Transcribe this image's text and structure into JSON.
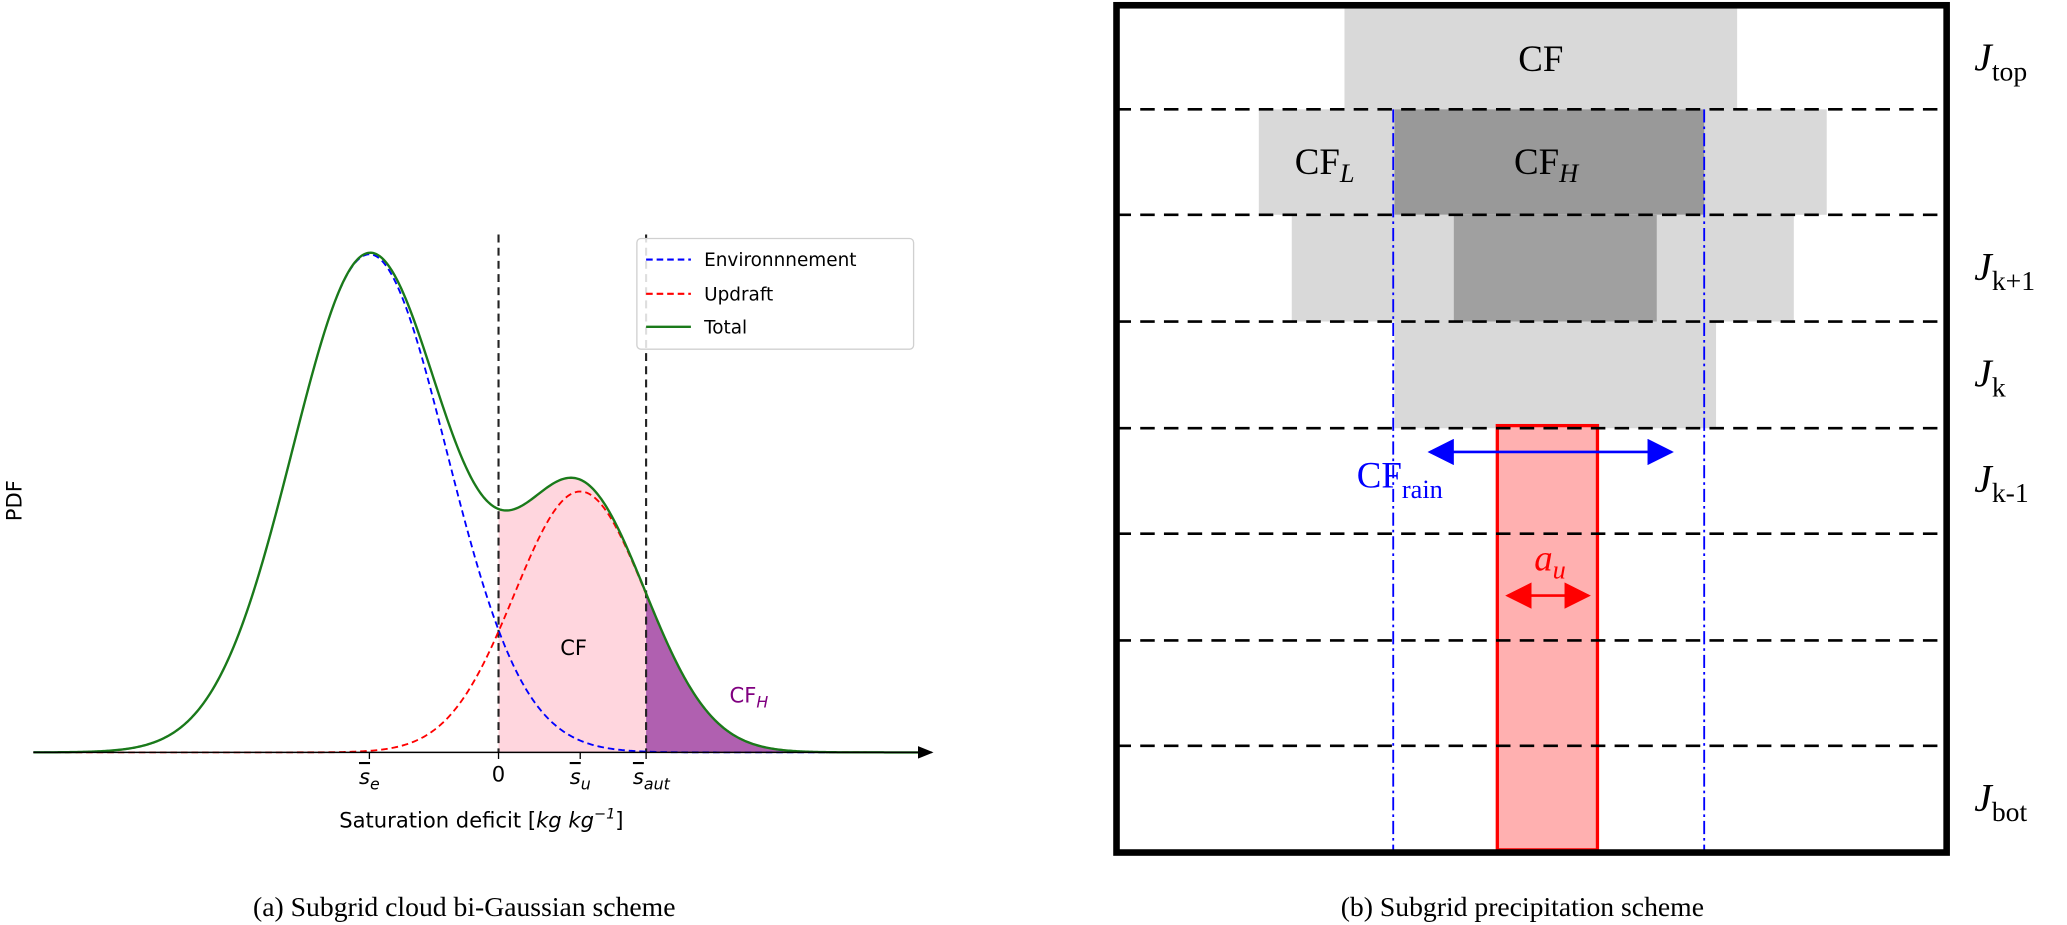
{
  "panel_a": {
    "caption": "(a) Subgrid cloud bi-Gaussian scheme",
    "ylabel": "PDF",
    "xlabel": "Saturation deficit [",
    "xlabel_unit": "kg kg",
    "xlabel_exp": "−1",
    "xlabel_close": "]",
    "ticks": [
      {
        "base": "s",
        "sub": "e"
      },
      {
        "base": "0",
        "sub": ""
      },
      {
        "base": "s",
        "sub": "u"
      },
      {
        "base": "s",
        "sub": "aut"
      }
    ],
    "region_labels": {
      "cf": "CF",
      "cfh_base": "CF",
      "cfh_sub": "H"
    },
    "legend": [
      {
        "label": "Environnnement",
        "color": "#0000ff",
        "style": "dashed"
      },
      {
        "label": "Updraft",
        "color": "#ff0000",
        "style": "dashed"
      },
      {
        "label": "Total",
        "color": "#008000",
        "style": "solid"
      }
    ],
    "colors": {
      "cf_fill": "#ffd6de",
      "cfh_fill": "#b060b0",
      "threshold": "#222222"
    }
  },
  "panel_b": {
    "caption": "(b) Subgrid precipitation scheme",
    "cloud_labels": {
      "cf": "CF",
      "cfl_base": "CF",
      "cfl_sub": "L",
      "cfh_base": "CF",
      "cfh_sub": "H"
    },
    "cf_rain": {
      "base": "CF",
      "sub": "rain"
    },
    "a_u": {
      "base": "a",
      "sub": "u"
    },
    "levels": [
      {
        "base": "J",
        "sub": "top"
      },
      {
        "base": "J",
        "sub": "k+1"
      },
      {
        "base": "J",
        "sub": "k"
      },
      {
        "base": "J",
        "sub": "k-1"
      },
      {
        "base": "J",
        "sub": "bot"
      }
    ],
    "colors": {
      "light_cloud": "#d9d9d9",
      "dark_cloud": "#999999",
      "rain_fill": "#ffb0b0",
      "rain_edge": "#ff0000",
      "cf_rain": "#0000ff"
    }
  }
}
